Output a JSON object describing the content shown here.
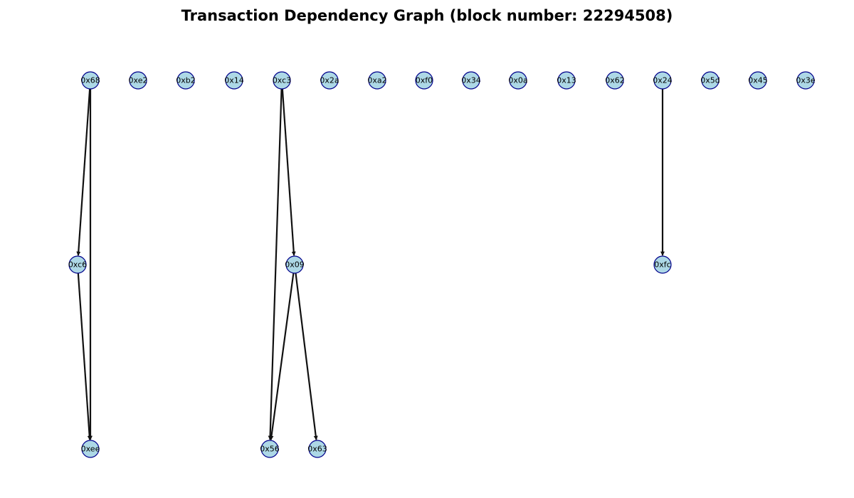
{
  "title": "Transaction Dependency Graph (block number: 22294508)",
  "colors": {
    "node_fill": "#add8e6",
    "node_stroke": "#00008b",
    "edge": "#111111"
  },
  "levels": [
    [
      "0x68",
      "0xe2",
      "0xb2",
      "0x14",
      "0xc3",
      "0x2a",
      "0xa2",
      "0xf0",
      "0x34",
      "0x0a",
      "0x13",
      "0x62",
      "0x24",
      "0x5d",
      "0x45",
      "0x3e"
    ],
    [
      "0xc6",
      "0x09",
      "0xfc"
    ],
    [
      "0xee",
      "0x56",
      "0x63"
    ]
  ],
  "edges": [
    {
      "from": "0x68",
      "to": "0xc6"
    },
    {
      "from": "0x68",
      "to": "0xee"
    },
    {
      "from": "0xc6",
      "to": "0xee"
    },
    {
      "from": "0xc3",
      "to": "0x09"
    },
    {
      "from": "0xc3",
      "to": "0x56"
    },
    {
      "from": "0x09",
      "to": "0x56"
    },
    {
      "from": "0x09",
      "to": "0x63"
    },
    {
      "from": "0x24",
      "to": "0xfc"
    }
  ]
}
